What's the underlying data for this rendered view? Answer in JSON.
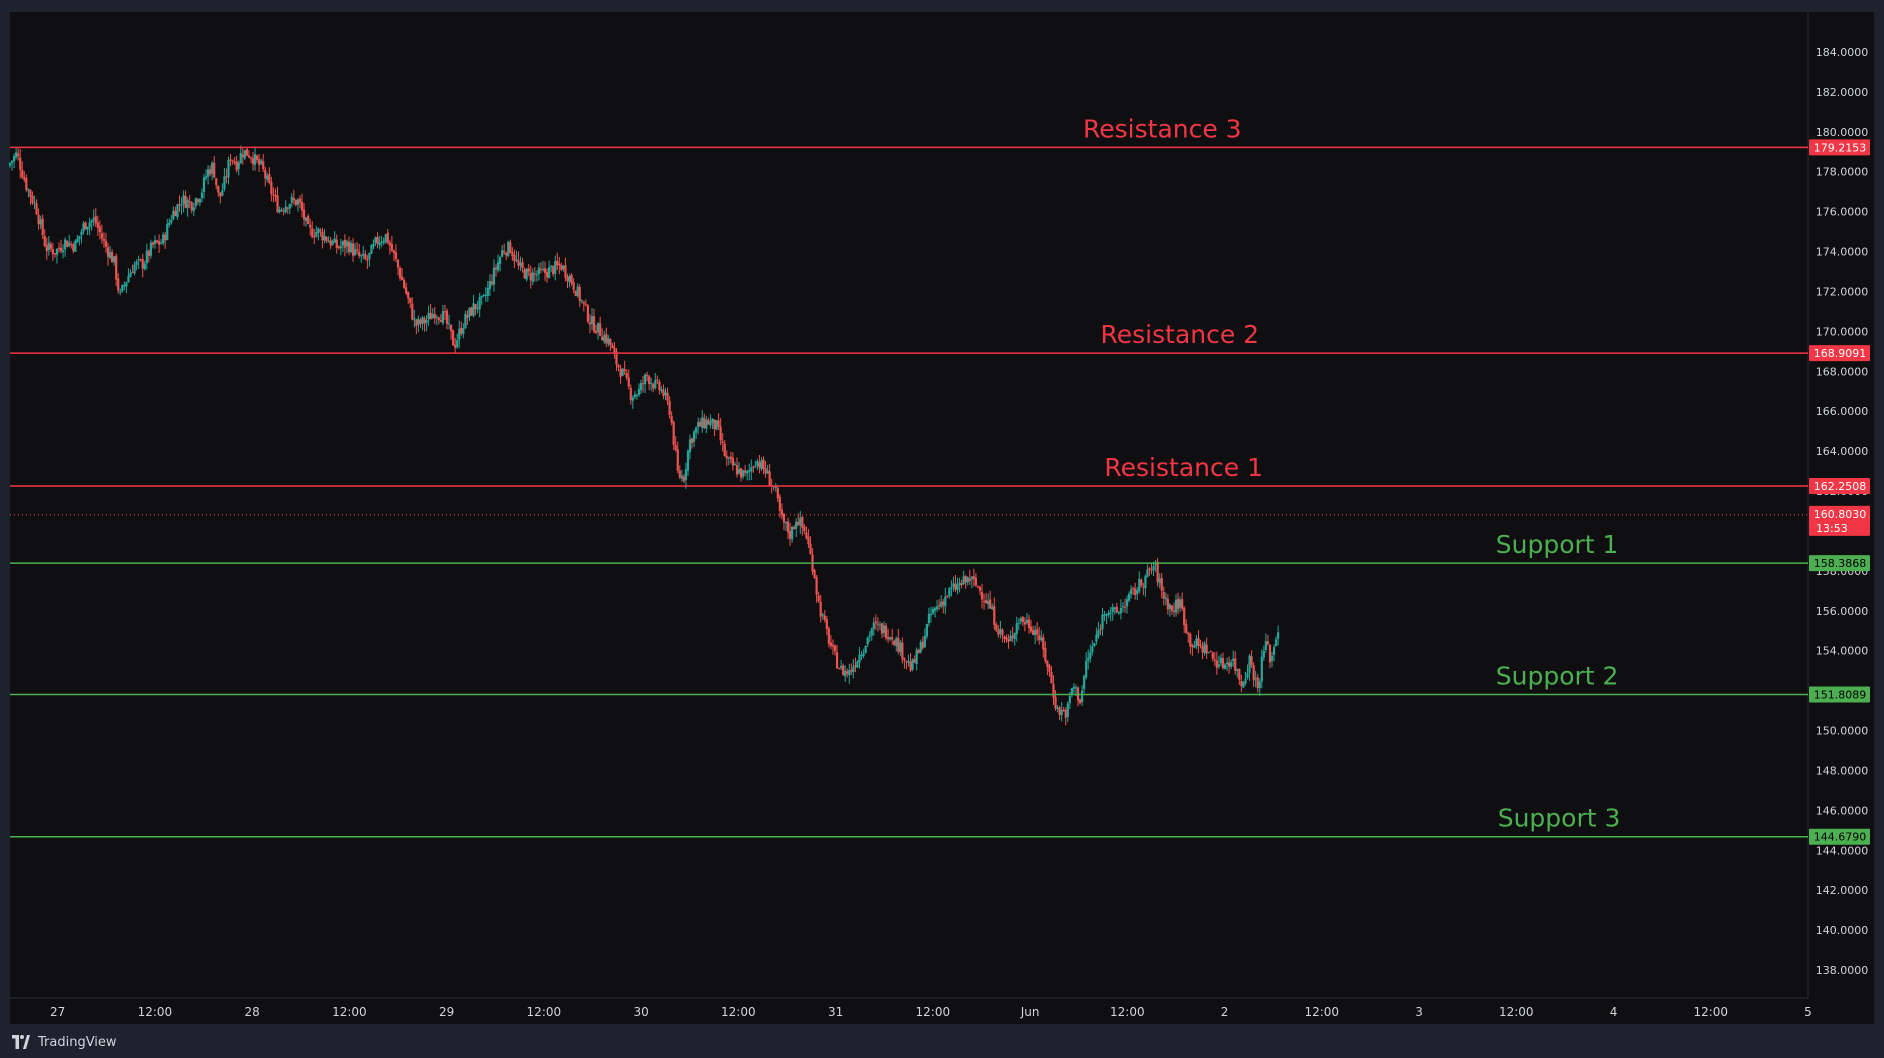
{
  "brand": {
    "name": "TradingView"
  },
  "colors": {
    "background": "#0f0f11",
    "frame": "#1e222d",
    "resistance": "#f23645",
    "support": "#4caf50",
    "candle_up": "#26a69a",
    "candle_down": "#ef5350",
    "axis_text": "#d1d4dc",
    "grid": "#131316"
  },
  "chart_data": {
    "type": "candlestick",
    "ylim": [
      136.6,
      186.0
    ],
    "y_ticks": [
      "184.0000",
      "182.0000",
      "180.0000",
      "178.0000",
      "176.0000",
      "174.0000",
      "172.0000",
      "170.0000",
      "168.0000",
      "166.0000",
      "164.0000",
      "162.0000",
      "160.0000",
      "158.0000",
      "156.0000",
      "154.0000",
      "152.0000",
      "150.0000",
      "148.0000",
      "146.0000",
      "144.0000",
      "142.0000",
      "140.0000",
      "138.0000"
    ],
    "x_ticks": [
      {
        "label": "27",
        "day": 0.0
      },
      {
        "label": "12:00",
        "day": 0.5
      },
      {
        "label": "28",
        "day": 1.0
      },
      {
        "label": "12:00",
        "day": 1.5
      },
      {
        "label": "29",
        "day": 2.0
      },
      {
        "label": "12:00",
        "day": 2.5
      },
      {
        "label": "30",
        "day": 3.0
      },
      {
        "label": "12:00",
        "day": 3.5
      },
      {
        "label": "31",
        "day": 4.0
      },
      {
        "label": "12:00",
        "day": 4.5
      },
      {
        "label": "Jun",
        "day": 5.0
      },
      {
        "label": "12:00",
        "day": 5.5
      },
      {
        "label": "2",
        "day": 6.0
      },
      {
        "label": "12:00",
        "day": 6.5
      },
      {
        "label": "3",
        "day": 7.0
      },
      {
        "label": "12:00",
        "day": 7.5
      },
      {
        "label": "4",
        "day": 8.0
      },
      {
        "label": "12:00",
        "day": 8.5
      },
      {
        "label": "5",
        "day": 9.0
      }
    ],
    "xlim_days": [
      -0.245,
      9.0
    ],
    "levels": [
      {
        "label": "Resistance 3",
        "value": 179.2153,
        "price": "179.2153",
        "kind": "resistance",
        "label_day": 5.68
      },
      {
        "label": "Resistance 2",
        "value": 168.9091,
        "price": "168.9091",
        "kind": "resistance",
        "label_day": 5.77
      },
      {
        "label": "Resistance 1",
        "value": 162.2508,
        "price": "162.2508",
        "kind": "resistance",
        "label_day": 5.79
      },
      {
        "label": "Support 1",
        "value": 158.3868,
        "price": "158.3868",
        "kind": "support",
        "label_day": 7.71
      },
      {
        "label": "Support 2",
        "value": 151.8089,
        "price": "151.8089",
        "kind": "support",
        "label_day": 7.71
      },
      {
        "label": "Support 3",
        "value": 144.679,
        "price": "144.6790",
        "kind": "support",
        "label_day": 7.72
      }
    ],
    "last_price": {
      "value": 160.803,
      "price": "160.8030",
      "countdown": "13:53"
    },
    "price_path": [
      [
        -0.245,
        178.3
      ],
      [
        -0.2,
        178.9
      ],
      [
        -0.15,
        177.3
      ],
      [
        -0.1,
        176.2
      ],
      [
        -0.05,
        174.2
      ],
      [
        0.0,
        174.0
      ],
      [
        0.05,
        174.5
      ],
      [
        0.1,
        174.3
      ],
      [
        0.15,
        175.4
      ],
      [
        0.2,
        175.6
      ],
      [
        0.25,
        174.4
      ],
      [
        0.3,
        173.5
      ],
      [
        0.33,
        171.7
      ],
      [
        0.36,
        172.5
      ],
      [
        0.4,
        173.3
      ],
      [
        0.45,
        173.4
      ],
      [
        0.5,
        174.3
      ],
      [
        0.55,
        174.5
      ],
      [
        0.6,
        175.9
      ],
      [
        0.65,
        176.6
      ],
      [
        0.7,
        176.4
      ],
      [
        0.75,
        177.0
      ],
      [
        0.78,
        178.0
      ],
      [
        0.81,
        178.3
      ],
      [
        0.84,
        176.6
      ],
      [
        0.87,
        177.5
      ],
      [
        0.9,
        178.8
      ],
      [
        0.93,
        178.4
      ],
      [
        0.96,
        179.0
      ],
      [
        1.0,
        178.9
      ],
      [
        1.03,
        178.5
      ],
      [
        1.06,
        178.2
      ],
      [
        1.1,
        177.2
      ],
      [
        1.15,
        176.1
      ],
      [
        1.2,
        176.5
      ],
      [
        1.25,
        176.5
      ],
      [
        1.3,
        175.0
      ],
      [
        1.35,
        175.0
      ],
      [
        1.4,
        174.6
      ],
      [
        1.45,
        174.2
      ],
      [
        1.5,
        174.4
      ],
      [
        1.55,
        173.8
      ],
      [
        1.6,
        173.5
      ],
      [
        1.65,
        174.5
      ],
      [
        1.7,
        174.8
      ],
      [
        1.75,
        173.5
      ],
      [
        1.8,
        172.0
      ],
      [
        1.85,
        170.3
      ],
      [
        1.9,
        170.5
      ],
      [
        1.95,
        171.0
      ],
      [
        2.0,
        170.7
      ],
      [
        2.05,
        169.3
      ],
      [
        2.1,
        170.5
      ],
      [
        2.15,
        171.2
      ],
      [
        2.2,
        171.5
      ],
      [
        2.25,
        172.8
      ],
      [
        2.3,
        174.1
      ],
      [
        2.34,
        174.2
      ],
      [
        2.38,
        173.2
      ],
      [
        2.43,
        172.8
      ],
      [
        2.5,
        172.9
      ],
      [
        2.55,
        173.1
      ],
      [
        2.6,
        173.3
      ],
      [
        2.65,
        172.6
      ],
      [
        2.7,
        171.6
      ],
      [
        2.75,
        170.5
      ],
      [
        2.8,
        170.0
      ],
      [
        2.85,
        169.4
      ],
      [
        2.88,
        168.5
      ],
      [
        2.92,
        167.8
      ],
      [
        2.96,
        166.8
      ],
      [
        3.0,
        167.0
      ],
      [
        3.04,
        167.8
      ],
      [
        3.08,
        167.3
      ],
      [
        3.12,
        167.0
      ],
      [
        3.16,
        166.0
      ],
      [
        3.2,
        162.8
      ],
      [
        3.23,
        162.7
      ],
      [
        3.26,
        164.5
      ],
      [
        3.3,
        165.2
      ],
      [
        3.35,
        165.5
      ],
      [
        3.4,
        165.2
      ],
      [
        3.45,
        163.5
      ],
      [
        3.5,
        163.1
      ],
      [
        3.55,
        162.7
      ],
      [
        3.6,
        163.6
      ],
      [
        3.65,
        163.0
      ],
      [
        3.7,
        162.0
      ],
      [
        3.73,
        160.6
      ],
      [
        3.78,
        159.8
      ],
      [
        3.81,
        160.7
      ],
      [
        3.86,
        159.8
      ],
      [
        3.88,
        158.8
      ],
      [
        3.9,
        158.0
      ],
      [
        3.92,
        156.5
      ],
      [
        3.95,
        155.4
      ],
      [
        4.0,
        153.8
      ],
      [
        4.04,
        153.0
      ],
      [
        4.08,
        152.9
      ],
      [
        4.12,
        153.6
      ],
      [
        4.16,
        154.3
      ],
      [
        4.2,
        155.2
      ],
      [
        4.25,
        155.1
      ],
      [
        4.3,
        154.8
      ],
      [
        4.35,
        154.0
      ],
      [
        4.4,
        153.1
      ],
      [
        4.45,
        154.2
      ],
      [
        4.5,
        155.8
      ],
      [
        4.55,
        156.4
      ],
      [
        4.6,
        157.0
      ],
      [
        4.65,
        157.3
      ],
      [
        4.7,
        157.6
      ],
      [
        4.75,
        157.1
      ],
      [
        4.8,
        156.3
      ],
      [
        4.85,
        155.0
      ],
      [
        4.9,
        154.3
      ],
      [
        4.95,
        155.6
      ],
      [
        5.0,
        155.4
      ],
      [
        5.05,
        154.9
      ],
      [
        5.1,
        153.3
      ],
      [
        5.15,
        151.0
      ],
      [
        5.2,
        150.9
      ],
      [
        5.23,
        152.3
      ],
      [
        5.27,
        151.5
      ],
      [
        5.3,
        153.4
      ],
      [
        5.35,
        154.6
      ],
      [
        5.4,
        156.2
      ],
      [
        5.45,
        155.8
      ],
      [
        5.5,
        156.4
      ],
      [
        5.55,
        157.0
      ],
      [
        5.6,
        157.6
      ],
      [
        5.65,
        158.3
      ],
      [
        5.69,
        156.9
      ],
      [
        5.74,
        156.0
      ],
      [
        5.78,
        156.5
      ],
      [
        5.83,
        154.5
      ],
      [
        5.88,
        154.2
      ],
      [
        5.92,
        154.1
      ],
      [
        5.95,
        153.6
      ],
      [
        6.0,
        153.3
      ],
      [
        6.05,
        153.6
      ],
      [
        6.1,
        152.3
      ],
      [
        6.14,
        153.6
      ],
      [
        6.18,
        152.1
      ],
      [
        6.22,
        154.5
      ],
      [
        6.25,
        153.5
      ],
      [
        6.28,
        155.0
      ]
    ]
  }
}
